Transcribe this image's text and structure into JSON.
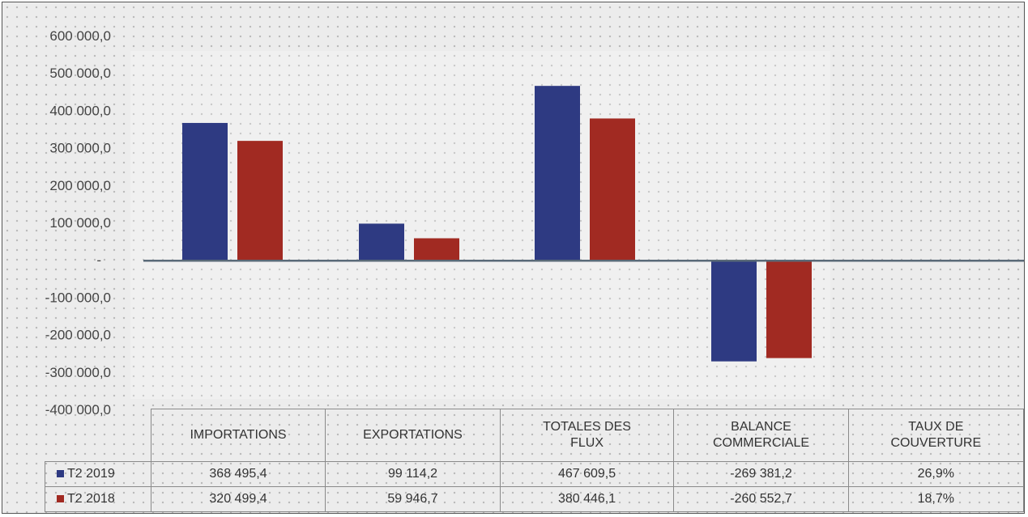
{
  "colors": {
    "t2_2019": "#2e3a82",
    "t2_2018": "#a12a22",
    "zero_line": "#5a6a78"
  },
  "chart_data": {
    "type": "bar",
    "categories": [
      "IMPORTATIONS",
      "EXPORTATIONS",
      "TOTALES DES FLUX",
      "BALANCE COMMERCIALE",
      "TAUX DE COUVERTURE"
    ],
    "series": [
      {
        "name": "T2 2019",
        "values": [
          368495.4,
          99114.2,
          467609.5,
          -269381.2,
          26.9
        ]
      },
      {
        "name": "T2 2018",
        "values": [
          320499.4,
          59946.7,
          380446.1,
          -260552.7,
          18.7
        ]
      }
    ],
    "ylim": [
      -400000,
      600000
    ],
    "y_ticks": [
      {
        "value": 600000,
        "label": "600 000,0"
      },
      {
        "value": 500000,
        "label": "500 000,0"
      },
      {
        "value": 400000,
        "label": "400 000,0"
      },
      {
        "value": 300000,
        "label": "300 000,0"
      },
      {
        "value": 200000,
        "label": "200 000,0"
      },
      {
        "value": 100000,
        "label": "100 000,0"
      },
      {
        "value": 0,
        "label": "-"
      },
      {
        "value": -100000,
        "label": "-100 000,0"
      },
      {
        "value": -200000,
        "label": "-200 000,0"
      },
      {
        "value": -300000,
        "label": "-300 000,0"
      },
      {
        "value": -400000,
        "label": "-400 000,0"
      }
    ],
    "grid": false,
    "legend": "data-table-left"
  },
  "table": {
    "headers": [
      "IMPORTATIONS",
      "EXPORTATIONS",
      "TOTALES DES FLUX",
      "BALANCE COMMERCIALE",
      "TAUX DE COUVERTURE"
    ],
    "rows": [
      {
        "label": "T2 2019",
        "cells": [
          "368 495,4",
          "99 114,2",
          "467 609,5",
          "-269 381,2",
          "26,9%"
        ]
      },
      {
        "label": "T2 2018",
        "cells": [
          "320 499,4",
          "59 946,7",
          "380 446,1",
          "-260 552,7",
          "18,7%"
        ]
      }
    ]
  }
}
